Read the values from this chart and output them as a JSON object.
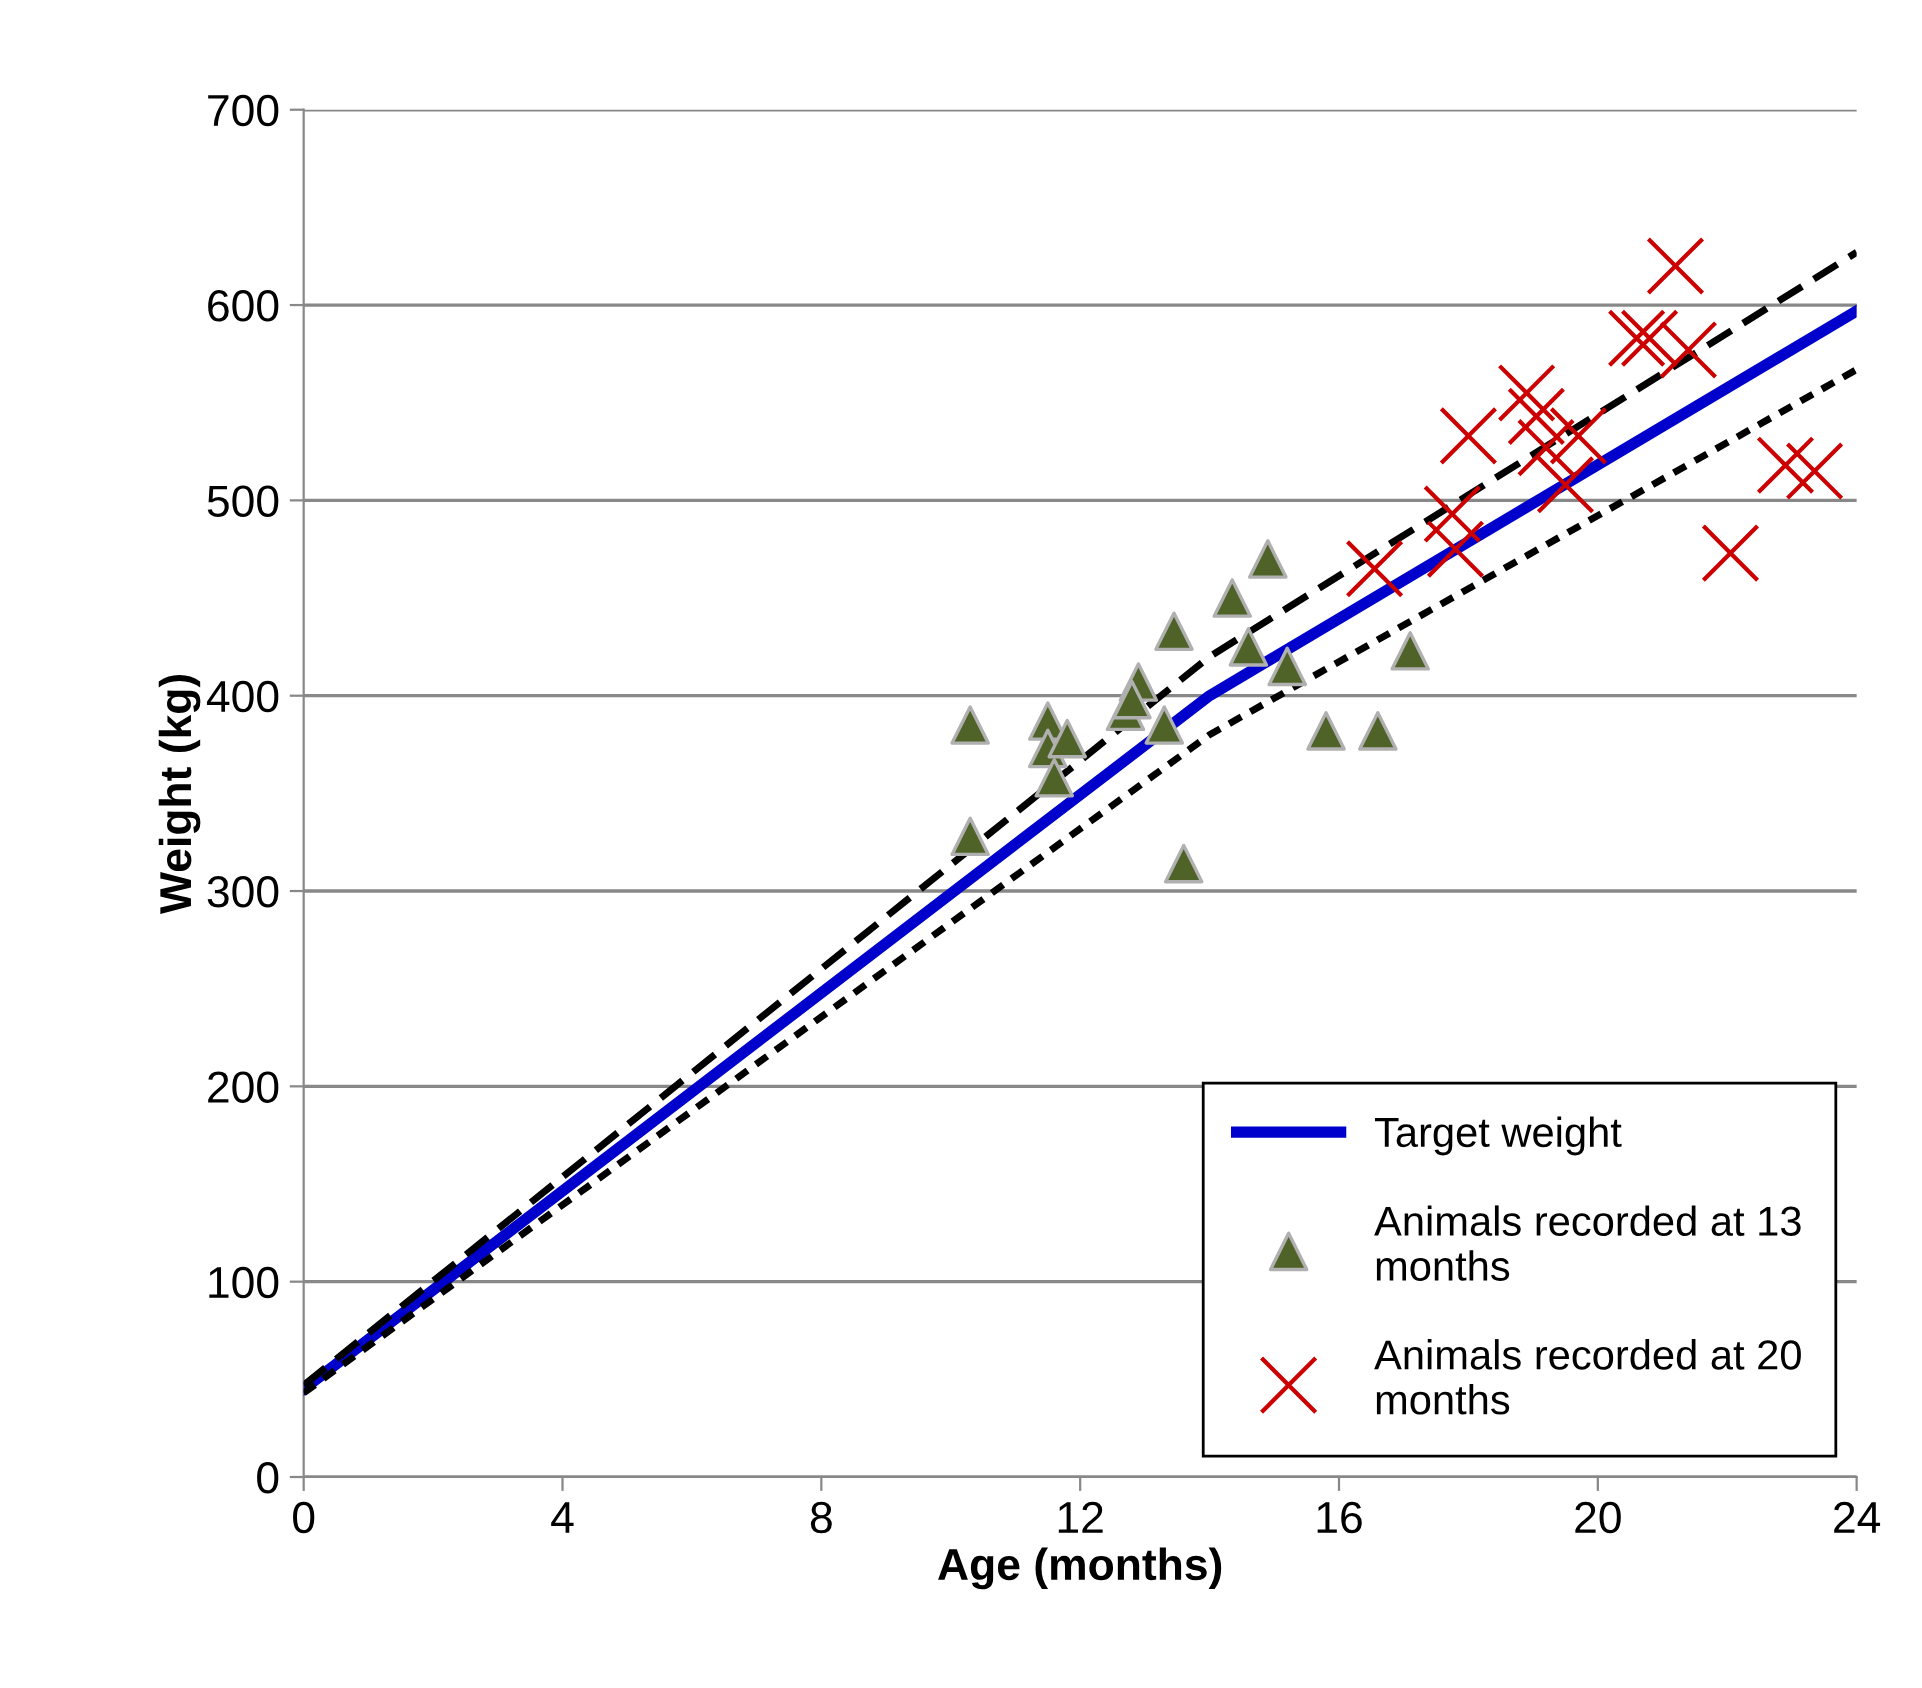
{
  "chart_data": {
    "type": "scatter",
    "xlabel": "Age (months)",
    "ylabel": "Weight (kg)",
    "xlim": [
      0,
      24
    ],
    "xticks": [
      0,
      4,
      8,
      12,
      16,
      20,
      24
    ],
    "ylim": [
      0,
      700
    ],
    "yticks": [
      0,
      100,
      200,
      300,
      400,
      500,
      600,
      700
    ],
    "grid": "y",
    "legend": "bottom right",
    "series": [
      {
        "type": "line",
        "name": "Target weight",
        "color": "#0000cc",
        "line_style": "solid",
        "marker": "none",
        "x": [
          0,
          14,
          24
        ],
        "values": [
          45,
          400,
          597
        ]
      },
      {
        "type": "line",
        "color": "#000000",
        "line_style": "dashed",
        "marker": "none",
        "x": [
          0,
          14,
          24
        ],
        "values": [
          47,
          420,
          627
        ]
      },
      {
        "type": "line",
        "color": "#000000",
        "line_style": "dotted",
        "marker": "none",
        "x": [
          0,
          14,
          24
        ],
        "values": [
          43,
          380,
          567
        ]
      },
      {
        "name": "Animals recorded at 13\nmonths",
        "color": "#4f6228",
        "marker": "triangle",
        "x": [
          10.3,
          10.3,
          11.5,
          11.5,
          11.8,
          11.6,
          12.7,
          12.9,
          12.8,
          13.3,
          13.45,
          13.6,
          14.35,
          14.6,
          14.9,
          15.2,
          15.8,
          16.6,
          17.1
        ],
        "values": [
          385,
          328,
          387,
          373,
          378,
          358,
          392,
          407,
          398,
          385,
          433,
          314,
          450,
          425,
          470,
          415,
          382,
          382,
          423
        ]
      },
      {
        "name": "Animals recorded at 20\nmonths",
        "color": "#cc0000",
        "marker": "cross",
        "x": [
          21.2,
          20.6,
          20.8,
          21.4,
          18.9,
          18.0,
          19.05,
          19.7,
          19.2,
          19.5,
          22.9,
          23.35,
          22.05,
          17.75,
          17.8,
          16.55
        ],
        "values": [
          620,
          583,
          583,
          577,
          555,
          533,
          543,
          533,
          527,
          508,
          518,
          515,
          473,
          493,
          475,
          465
        ]
      }
    ]
  }
}
